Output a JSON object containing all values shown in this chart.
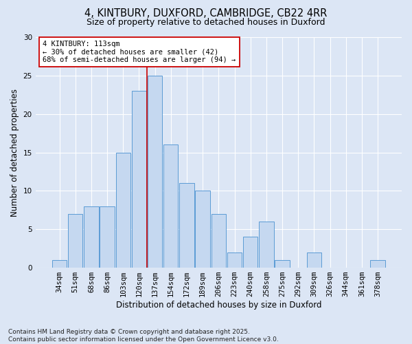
{
  "title1": "4, KINTBURY, DUXFORD, CAMBRIDGE, CB22 4RR",
  "title2": "Size of property relative to detached houses in Duxford",
  "xlabel": "Distribution of detached houses by size in Duxford",
  "ylabel": "Number of detached properties",
  "categories": [
    "34sqm",
    "51sqm",
    "68sqm",
    "86sqm",
    "103sqm",
    "120sqm",
    "137sqm",
    "154sqm",
    "172sqm",
    "189sqm",
    "206sqm",
    "223sqm",
    "240sqm",
    "258sqm",
    "275sqm",
    "292sqm",
    "309sqm",
    "326sqm",
    "344sqm",
    "361sqm",
    "378sqm"
  ],
  "values": [
    1,
    7,
    8,
    8,
    15,
    23,
    25,
    16,
    11,
    10,
    7,
    2,
    4,
    6,
    1,
    0,
    2,
    0,
    0,
    0,
    1
  ],
  "bar_color": "#c5d8f0",
  "bar_edge_color": "#5b9bd5",
  "vline_x": 5.5,
  "vline_color": "#cc0000",
  "annotation_text": "4 KINTBURY: 113sqm\n← 30% of detached houses are smaller (42)\n68% of semi-detached houses are larger (94) →",
  "annotation_box_color": "#ffffff",
  "annotation_box_edge": "#cc0000",
  "ylim": [
    0,
    30
  ],
  "yticks": [
    0,
    5,
    10,
    15,
    20,
    25,
    30
  ],
  "bg_color": "#dce6f5",
  "footer": "Contains HM Land Registry data © Crown copyright and database right 2025.\nContains public sector information licensed under the Open Government Licence v3.0.",
  "title_fontsize": 10.5,
  "subtitle_fontsize": 9,
  "axis_label_fontsize": 8.5,
  "tick_fontsize": 7.5,
  "footer_fontsize": 6.5,
  "annot_fontsize": 7.5
}
